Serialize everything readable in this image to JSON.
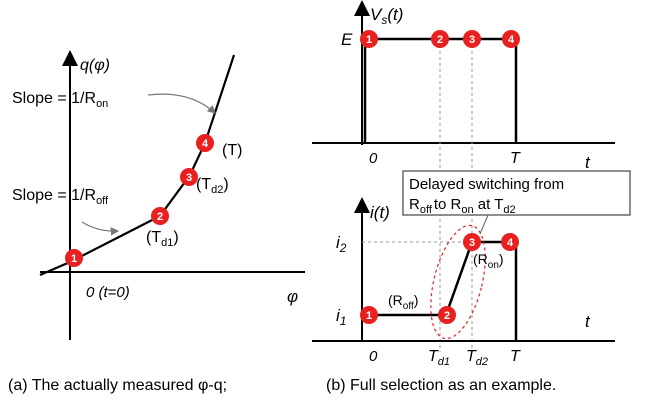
{
  "panel_a": {
    "y_axis_label": "q(φ)",
    "x_axis_label": "φ",
    "origin_label": "0 (t=0)",
    "slope_on": {
      "prefix": "Slope = 1/R",
      "sub": "on"
    },
    "slope_off": {
      "prefix": "Slope = 1/R",
      "sub": "off"
    },
    "point_labels": {
      "p2": {
        "base": "(T",
        "sub": "d1",
        "close": ")"
      },
      "p3": {
        "base": "(T",
        "sub": "d2",
        "close": ")"
      },
      "p4": "(T)"
    },
    "caption": "(a) The actually measured φ-q;"
  },
  "panel_b_top": {
    "y_axis": {
      "base": "V",
      "sub": "s",
      "rest": "(t)"
    },
    "x_axis_label": "t",
    "origin_label": "0",
    "level_label": "E",
    "t_label": "T"
  },
  "panel_b_bottom": {
    "y_axis_label": "i(t)",
    "x_axis_label": "t",
    "origin_label": "0",
    "i1": {
      "base": "i",
      "sub": "1"
    },
    "i2": {
      "base": "i",
      "sub": "2"
    },
    "td1": {
      "base": "T",
      "sub": "d1"
    },
    "td2": {
      "base": "T",
      "sub": "d2"
    },
    "t_label": "T",
    "r_off": {
      "base": "(R",
      "sub": "off",
      "close": ")"
    },
    "r_on": {
      "base": "(R",
      "sub": "on",
      "close": ")"
    },
    "callout": {
      "line1": "Delayed switching from",
      "line2": {
        "a": "R",
        "a_sub": "off",
        "b": "to R",
        "b_sub": "on",
        "c": " at T",
        "c_sub": "d2"
      }
    },
    "caption": "(b) Full selection as an example."
  },
  "markers": [
    "1",
    "2",
    "3",
    "4"
  ],
  "colors": {
    "marker": "#e8201f",
    "line": "#000000",
    "dashed": "#888888",
    "ellipse": "#e8201f"
  }
}
